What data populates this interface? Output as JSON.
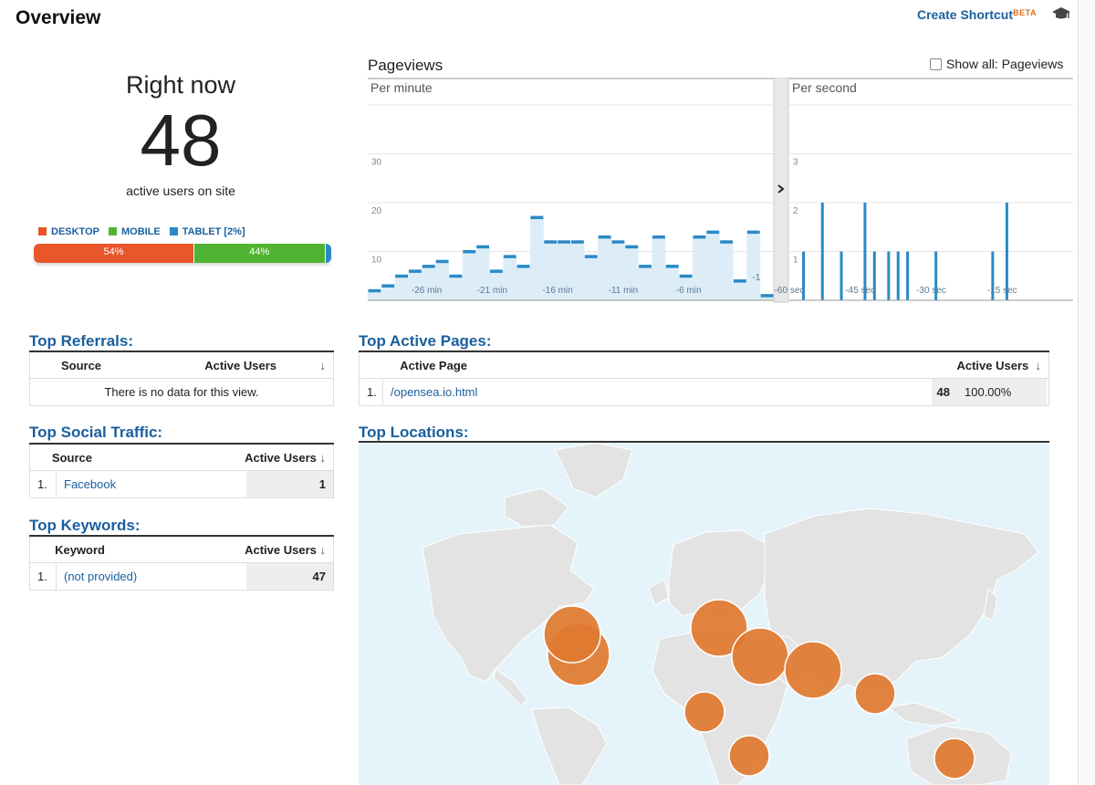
{
  "header": {
    "title": "Overview",
    "create_shortcut": "Create Shortcut",
    "beta": "BETA"
  },
  "right_now": {
    "heading": "Right now",
    "count": "48",
    "subtitle": "active users on site",
    "legend": [
      {
        "label": "DESKTOP",
        "color": "#e8562a"
      },
      {
        "label": "MOBILE",
        "color": "#50b432"
      },
      {
        "label": "TABLET [2%]",
        "color": "#2a8ac6"
      }
    ],
    "breakdown": [
      {
        "label": "54%",
        "value": 54,
        "color": "#e8562a"
      },
      {
        "label": "44%",
        "value": 44,
        "color": "#50b432"
      },
      {
        "label": "",
        "value": 2,
        "color": "#2a8ac6"
      }
    ]
  },
  "pageviews": {
    "title": "Pageviews",
    "show_all_label": "Show all: Pageviews"
  },
  "chart_data": [
    {
      "type": "bar",
      "title": "Per minute",
      "x": [
        -30,
        -29,
        -28,
        -27,
        -26,
        -25,
        -24,
        -23,
        -22,
        -21,
        -20,
        -19,
        -18,
        -17,
        -16,
        -15,
        -14,
        -13,
        -12,
        -11,
        -10,
        -9,
        -8,
        -7,
        -6,
        -5,
        -4,
        -3,
        -2,
        -1
      ],
      "values": [
        2,
        3,
        5,
        6,
        7,
        8,
        5,
        10,
        11,
        6,
        9,
        7,
        17,
        12,
        12,
        12,
        9,
        13,
        12,
        11,
        7,
        13,
        7,
        5,
        13,
        14,
        12,
        4,
        14,
        1
      ],
      "x_tick_labels": [
        "-26 min",
        "-21 min",
        "-16 min",
        "-11 min",
        "-6 min",
        "-1"
      ],
      "y_tick_labels": [
        "10",
        "20",
        "30"
      ],
      "ylim": [
        0,
        40
      ],
      "color": "#2a8ac6"
    },
    {
      "type": "bar",
      "title": "Per second",
      "x": [
        -57,
        -53,
        -49,
        -44,
        -42,
        -39,
        -37,
        -35,
        -29,
        -17,
        -14
      ],
      "values": [
        1,
        2,
        1,
        2,
        1,
        1,
        1,
        1,
        1,
        1,
        2
      ],
      "x_tick_labels": [
        "-60 sec",
        "-45 sec",
        "-30 sec",
        "-15 sec"
      ],
      "y_tick_labels": [
        "1",
        "2",
        "3"
      ],
      "ylim": [
        0,
        4
      ],
      "color": "#2a8ac6"
    }
  ],
  "top_referrals": {
    "title": "Top Referrals:",
    "col_source": "Source",
    "col_users": "Active Users",
    "empty": "There is no data for this view."
  },
  "top_social": {
    "title": "Top Social Traffic:",
    "col_source": "Source",
    "col_users": "Active Users",
    "rows": [
      {
        "index": "1.",
        "name": "Facebook",
        "value": "1"
      }
    ]
  },
  "top_keywords": {
    "title": "Top Keywords:",
    "col_keyword": "Keyword",
    "col_users": "Active Users",
    "rows": [
      {
        "index": "1.",
        "name": "(not provided)",
        "value": "47"
      }
    ]
  },
  "top_pages": {
    "title": "Top Active Pages:",
    "col_page": "Active Page",
    "col_users": "Active Users",
    "rows": [
      {
        "index": "1.",
        "name": "/opensea.io.html",
        "value": "48",
        "pct": "100.00%"
      }
    ]
  },
  "top_locations": {
    "title": "Top Locations:",
    "markers": [
      {
        "region": "north-america",
        "size": 3
      },
      {
        "region": "europe",
        "size": 3
      },
      {
        "region": "middle-east",
        "size": 3
      },
      {
        "region": "south-asia",
        "size": 3
      },
      {
        "region": "southeast-asia",
        "size": 2
      },
      {
        "region": "west-africa",
        "size": 2
      },
      {
        "region": "southern-africa",
        "size": 2
      },
      {
        "region": "australia",
        "size": 2
      }
    ]
  },
  "icons": [
    "graduation-cap-icon",
    "chevron-right-icon",
    "sort-down-arrow-icon"
  ]
}
